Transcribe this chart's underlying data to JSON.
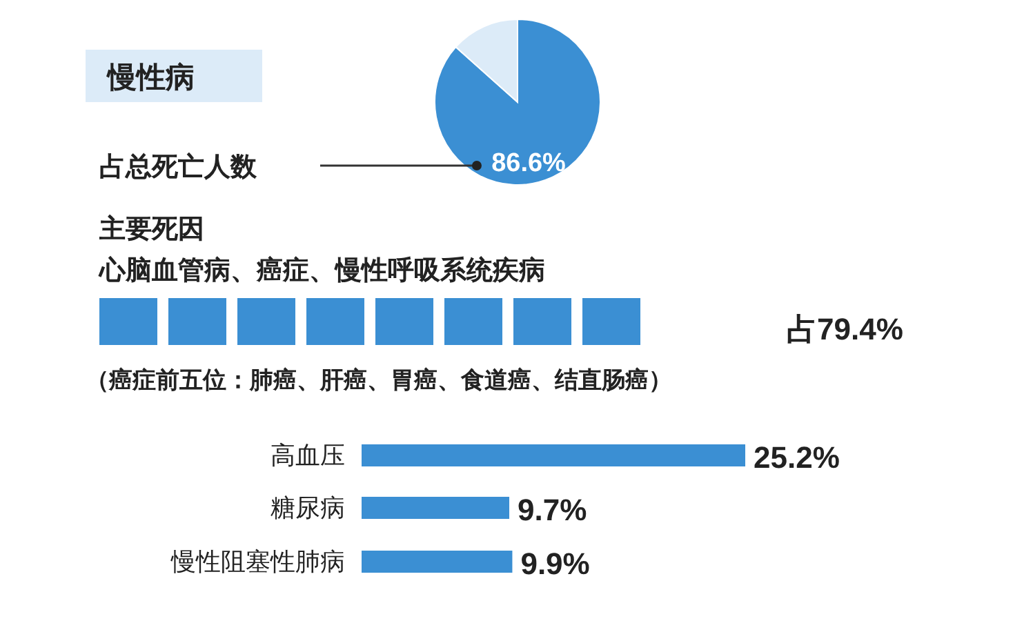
{
  "chart_data": [
    {
      "type": "pie",
      "title": "慢性病",
      "categories": [
        null,
        null
      ],
      "values": [
        86.6,
        13.4
      ],
      "colors": [
        "#3b8fd3",
        "#dcebf8"
      ],
      "value_labels": [
        "86.6%",
        null
      ],
      "annotations": [
        "占总死亡人数"
      ]
    },
    {
      "type": "other",
      "title": "主要死因",
      "subtitle": "心脑血管病、癌症、慢性呼吸系统疾病",
      "annotations": [
        "占79.4%",
        "（癌症前五位：肺癌、肝癌、胃癌、食道癌、结直肠癌）"
      ]
    },
    {
      "type": "bar",
      "orientation": "horizontal",
      "categories": [
        "高血压",
        "糖尿病",
        "慢性阻塞性肺病"
      ],
      "values": [
        25.2,
        9.7,
        9.9
      ],
      "color": "#3b8fd3",
      "value_labels": [
        "25.2%",
        "9.7%",
        "9.9%"
      ]
    }
  ]
}
